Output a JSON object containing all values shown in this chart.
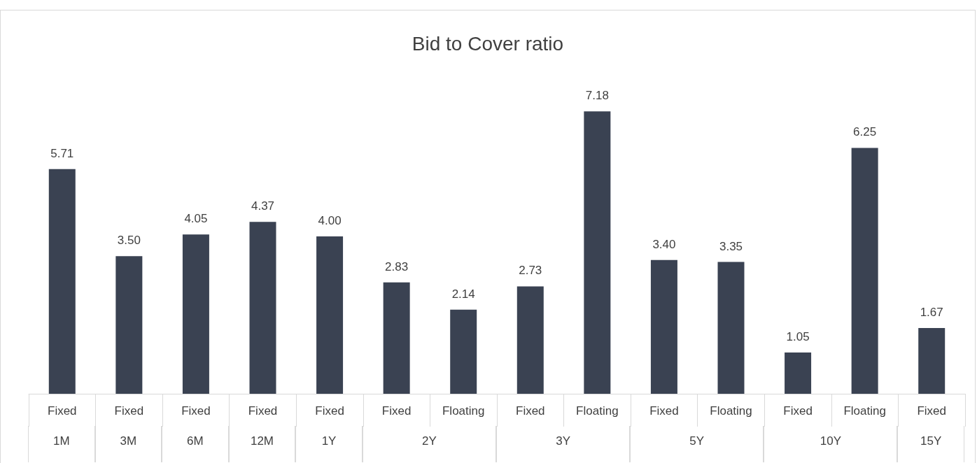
{
  "chart_data": {
    "type": "bar",
    "title": "Bid to Cover ratio",
    "categories": [
      "Fixed",
      "Fixed",
      "Fixed",
      "Fixed",
      "Fixed",
      "Fixed",
      "Floating",
      "Fixed",
      "Floating",
      "Fixed",
      "Floating",
      "Fixed",
      "Floating",
      "Fixed"
    ],
    "values": [
      5.71,
      3.5,
      4.05,
      4.37,
      4.0,
      2.83,
      2.14,
      2.73,
      7.18,
      3.4,
      3.35,
      1.05,
      6.25,
      1.67
    ],
    "value_labels": [
      "5.71",
      "3.50",
      "4.05",
      "4.37",
      "4.00",
      "2.83",
      "2.14",
      "2.73",
      "7.18",
      "3.40",
      "3.35",
      "1.05",
      "6.25",
      "1.67"
    ],
    "color": "#3a4252",
    "annotations": [
      "1M",
      "3M",
      "6M",
      "12M",
      "1Y",
      "2Y",
      "3Y",
      "5Y",
      "10Y",
      "15Y"
    ]
  }
}
